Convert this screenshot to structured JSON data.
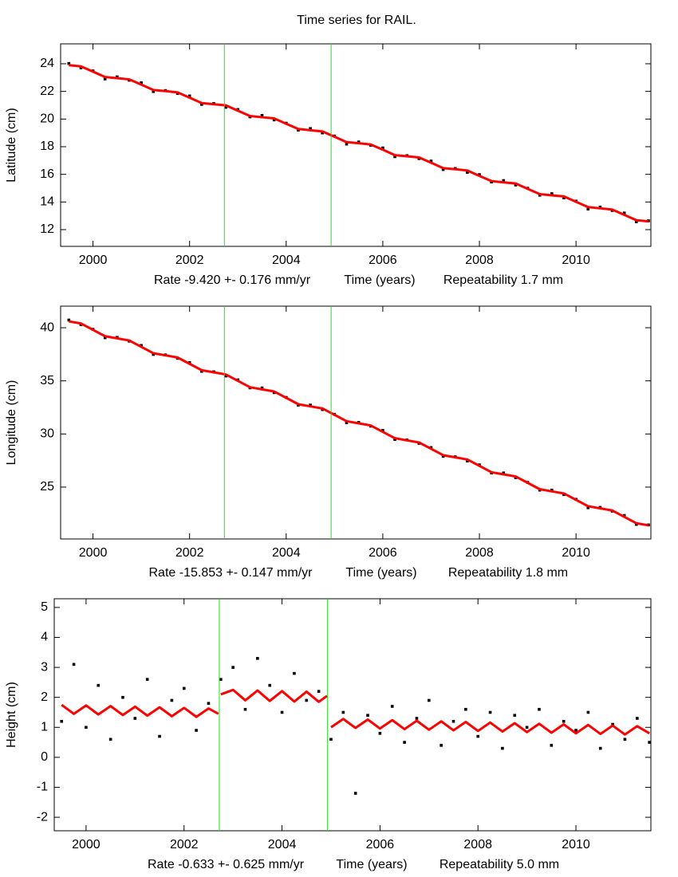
{
  "chart_data": [
    {
      "type": "line",
      "title": "Time series for RAIL.",
      "ylabel": "Latitude (cm)",
      "xlabel": "Time (years)",
      "rate_label": "Rate -9.420 +- 0.176 mm/yr",
      "repeatability_label": "Repeatability 1.7 mm",
      "xlim": [
        1999.33,
        2011.55
      ],
      "xticks": [
        2000,
        2002,
        2004,
        2006,
        2008,
        2010
      ],
      "ylim": [
        10.79,
        25.44
      ],
      "yticks": [
        12,
        14,
        16,
        18,
        20,
        22,
        24
      ],
      "breaks": [
        2002.72,
        2004.93
      ],
      "break_color": "#22dd22",
      "x": [
        1999.5,
        1999.75,
        2000,
        2000.25,
        2000.5,
        2000.75,
        2001,
        2001.25,
        2001.5,
        2001.75,
        2002,
        2002.25,
        2002.5,
        2002.75,
        2003,
        2003.25,
        2003.5,
        2003.75,
        2004,
        2004.25,
        2004.5,
        2004.75,
        2005,
        2005.25,
        2005.5,
        2005.75,
        2006,
        2006.25,
        2006.5,
        2006.75,
        2007,
        2007.25,
        2007.5,
        2007.75,
        2008,
        2008.25,
        2008.5,
        2008.75,
        2009,
        2009.25,
        2009.5,
        2009.75,
        2010,
        2010.25,
        2010.5,
        2010.75,
        2011,
        2011.25,
        2011.5
      ],
      "observations": {
        "color": "#000000",
        "values": [
          24.02,
          23.71,
          23.48,
          22.9,
          23.05,
          22.81,
          22.62,
          21.99,
          22.06,
          21.85,
          21.67,
          21.06,
          21.12,
          20.85,
          20.69,
          20.16,
          20.26,
          19.94,
          19.7,
          19.2,
          19.31,
          19.0,
          18.77,
          18.19,
          18.34,
          18.1,
          17.91,
          17.28,
          17.35,
          17.14,
          16.96,
          16.35,
          16.42,
          16.14,
          15.98,
          15.45,
          15.55,
          15.23,
          14.99,
          14.49,
          14.6,
          14.3,
          14.06,
          13.49,
          13.63,
          13.39,
          13.2,
          12.57,
          12.64
        ]
      },
      "fit": {
        "color": "#ff0000",
        "segments": [
          {
            "values": [
              23.9,
              23.81,
              23.43,
              23.04,
              22.96,
              22.87,
              22.49,
              22.1,
              22.02,
              21.93,
              21.55,
              21.16,
              21.07,
              20.99,
              20.6,
              20.22,
              20.13,
              20.05,
              19.66,
              19.28,
              19.19,
              19.1,
              18.72,
              18.33,
              18.25,
              18.16,
              17.78,
              17.39,
              17.31,
              17.22,
              16.84,
              16.45,
              16.37,
              16.28,
              15.89,
              15.51,
              15.42,
              15.34,
              14.95,
              14.57,
              14.48,
              14.4,
              14.01,
              13.63,
              13.54,
              13.45,
              13.07,
              12.68,
              12.6
            ]
          }
        ]
      }
    },
    {
      "type": "line",
      "ylabel": "Longitude (cm)",
      "xlabel": "Time (years)",
      "rate_label": "Rate -15.853 +- 0.147 mm/yr",
      "repeatability_label": "Repeatability 1.8 mm",
      "xlim": [
        1999.33,
        2011.55
      ],
      "xticks": [
        2000,
        2002,
        2004,
        2006,
        2008,
        2010
      ],
      "ylim": [
        20.12,
        42.03
      ],
      "yticks": [
        25,
        30,
        35,
        40
      ],
      "breaks": [
        2002.72,
        2004.93
      ],
      "break_color": "#22dd22",
      "x": [
        1999.5,
        1999.75,
        2000,
        2000.25,
        2000.5,
        2000.75,
        2001,
        2001.25,
        2001.5,
        2001.75,
        2002,
        2002.25,
        2002.5,
        2002.75,
        2003,
        2003.25,
        2003.5,
        2003.75,
        2004,
        2004.25,
        2004.5,
        2004.75,
        2005,
        2005.25,
        2005.5,
        2005.75,
        2006,
        2006.25,
        2006.5,
        2006.75,
        2007,
        2007.25,
        2007.5,
        2007.75,
        2008,
        2008.25,
        2008.5,
        2008.75,
        2009,
        2009.25,
        2009.5,
        2009.75,
        2010,
        2010.25,
        2010.5,
        2010.75,
        2011,
        2011.25,
        2011.5
      ],
      "observations": {
        "color": "#000000",
        "values": [
          40.72,
          40.3,
          39.85,
          39.06,
          39.09,
          38.74,
          38.33,
          37.49,
          37.44,
          37.12,
          36.72,
          35.9,
          35.85,
          35.46,
          35.09,
          34.34,
          34.33,
          33.89,
          33.44,
          32.72,
          32.72,
          32.3,
          31.85,
          31.06,
          31.09,
          30.74,
          30.33,
          29.49,
          29.44,
          29.12,
          28.72,
          27.9,
          27.85,
          27.46,
          27.09,
          26.34,
          26.33,
          25.89,
          25.44,
          24.72,
          24.72,
          24.3,
          23.85,
          23.06,
          23.09,
          22.74,
          22.33,
          21.49,
          21.44
        ]
      },
      "fit": {
        "color": "#ff0000",
        "segments": [
          {
            "values": [
              40.6,
              40.4,
              39.8,
              39.2,
              39.0,
              38.8,
              38.2,
              37.6,
              37.4,
              37.2,
              36.6,
              36.0,
              35.8,
              35.6,
              35.0,
              34.4,
              34.2,
              34.0,
              33.4,
              32.8,
              32.6,
              32.4,
              31.8,
              31.2,
              31.0,
              30.8,
              30.2,
              29.6,
              29.4,
              29.2,
              28.6,
              28.0,
              27.8,
              27.6,
              27.0,
              26.4,
              26.2,
              26.0,
              25.4,
              24.8,
              24.6,
              24.4,
              23.8,
              23.2,
              23.0,
              22.8,
              22.2,
              21.6,
              21.4
            ]
          }
        ]
      }
    },
    {
      "type": "line",
      "ylabel": "Height (cm)",
      "xlabel": "Time (years)",
      "rate_label": "Rate -0.633 +- 0.625 mm/yr",
      "repeatability_label": "Repeatability 5.0 mm",
      "xlim": [
        1999.35,
        2011.53
      ],
      "xticks": [
        2000,
        2002,
        2004,
        2006,
        2008,
        2010
      ],
      "ylim": [
        -2.45,
        5.29
      ],
      "yticks": [
        -2,
        -1,
        0,
        1,
        2,
        3,
        4,
        5
      ],
      "breaks": [
        2002.72,
        2004.93
      ],
      "break_color": "#22dd22",
      "x": [
        1999.5,
        1999.75,
        2000,
        2000.25,
        2000.5,
        2000.75,
        2001,
        2001.25,
        2001.5,
        2001.75,
        2002,
        2002.25,
        2002.5,
        2002.75,
        2003,
        2003.25,
        2003.5,
        2003.75,
        2004,
        2004.25,
        2004.5,
        2004.75,
        2005,
        2005.25,
        2005.5,
        2005.75,
        2006,
        2006.25,
        2006.5,
        2006.75,
        2007,
        2007.25,
        2007.5,
        2007.75,
        2008,
        2008.25,
        2008.5,
        2008.75,
        2009,
        2009.25,
        2009.5,
        2009.75,
        2010,
        2010.25,
        2010.5,
        2010.75,
        2011,
        2011.25,
        2011.5
      ],
      "observations": {
        "color": "#000000",
        "values": [
          1.2,
          3.1,
          1.0,
          2.4,
          0.6,
          2.0,
          1.3,
          2.6,
          0.7,
          1.9,
          2.3,
          0.9,
          1.8,
          2.6,
          3.0,
          1.6,
          3.3,
          2.4,
          1.5,
          2.8,
          1.9,
          2.2,
          0.6,
          1.5,
          -1.2,
          1.4,
          0.8,
          1.7,
          0.5,
          1.3,
          1.9,
          0.4,
          1.2,
          1.6,
          0.7,
          1.5,
          0.3,
          1.4,
          1.0,
          1.6,
          0.4,
          1.2,
          0.9,
          1.5,
          0.3,
          1.1,
          0.6,
          1.3,
          0.5
        ]
      },
      "fit": {
        "color": "#ff0000",
        "segments": [
          {
            "x": [
              1999.5,
              1999.75,
              2000,
              2000.25,
              2000.5,
              2000.75,
              2001,
              2001.25,
              2001.5,
              2001.75,
              2002,
              2002.25,
              2002.5,
              2002.7
            ],
            "values": [
              1.75,
              1.45,
              1.73,
              1.43,
              1.71,
              1.41,
              1.69,
              1.39,
              1.67,
              1.37,
              1.65,
              1.35,
              1.63,
              1.45
            ]
          },
          {
            "x": [
              2002.75,
              2003,
              2003.25,
              2003.5,
              2003.75,
              2004,
              2004.25,
              2004.5,
              2004.75,
              2004.92
            ],
            "values": [
              2.1,
              2.25,
              1.9,
              2.23,
              1.88,
              2.21,
              1.86,
              2.19,
              1.85,
              2.05
            ]
          },
          {
            "x": [
              2005,
              2005.25,
              2005.5,
              2005.75,
              2006,
              2006.25,
              2006.5,
              2006.75,
              2007,
              2007.25,
              2007.5,
              2007.75,
              2008,
              2008.25,
              2008.5,
              2008.75,
              2009,
              2009.25,
              2009.5,
              2009.75,
              2010,
              2010.25,
              2010.5,
              2010.75,
              2011,
              2011.25,
              2011.5
            ],
            "values": [
              1.0,
              1.28,
              0.98,
              1.26,
              0.96,
              1.24,
              0.94,
              1.22,
              0.92,
              1.2,
              0.9,
              1.18,
              0.88,
              1.16,
              0.86,
              1.14,
              0.84,
              1.12,
              0.82,
              1.1,
              0.8,
              1.08,
              0.78,
              1.06,
              0.76,
              1.04,
              0.8
            ]
          }
        ]
      }
    }
  ]
}
